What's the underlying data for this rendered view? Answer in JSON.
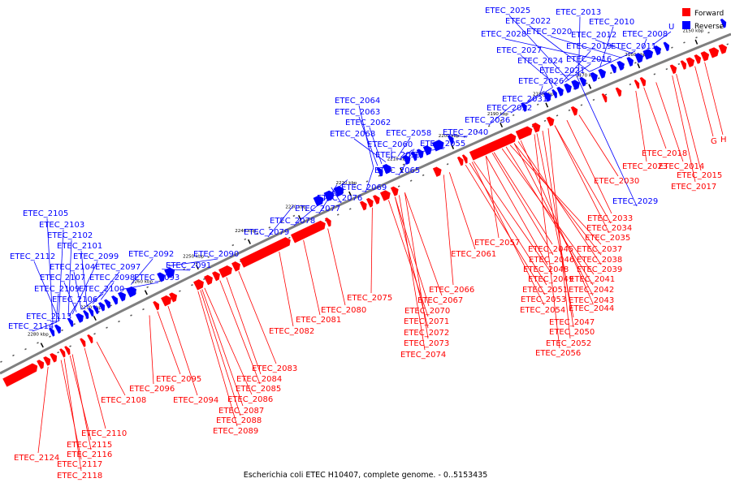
{
  "caption": "Escherichia coli ETEC H10407, complete genome. - 0..5153435",
  "legend": [
    {
      "label": "Forward",
      "color": "#ff0000"
    },
    {
      "label": "Reverse",
      "color": "#0000ff"
    }
  ],
  "colors": {
    "forward": "#ff0000",
    "reverse": "#0000ff",
    "backbone": "#7f7f7f",
    "tick": "#000000"
  },
  "scale_labels": [
    "2150 kbp",
    "2160 kbp",
    "2170 kbp",
    "2180 kbp",
    "2190 kbp",
    "2200 kbp",
    "2210 kbp",
    "2220 kbp",
    "2230 kbp",
    "2240 kbp",
    "2250 kbp",
    "2260 kbp",
    "2270 kbp",
    "2280 kbp"
  ],
  "reverse_labels": [
    "ETEC_2025",
    "ETEC_2013",
    "ETEC_2022",
    "ETEC_2010",
    "ETEC_2028",
    "ETEC_2020",
    "ETEC_2012",
    "ETEC_2008",
    "U",
    "ETEC_2027",
    "ETEC_2019",
    "ETEC_2011",
    "ETEC_2024",
    "ETEC_2016",
    "ETEC_2021",
    "ETEC_2026",
    "ETEC_2031",
    "ETEC_2032",
    "ETEC_2036",
    "ETEC_2064",
    "ETEC_2063",
    "ETEC_2062",
    "ETEC_2068",
    "ETEC_2058",
    "ETEC_2040",
    "ETEC_2060",
    "ETEC_2055",
    "ETEC_2059",
    "ETEC_2065",
    "ETEC_2069",
    "ETEC_2076",
    "ETEC_2077",
    "ETEC_2078",
    "ETEC_2079",
    "ETEC_2105",
    "ETEC_2103",
    "ETEC_2102",
    "ETEC_2101",
    "ETEC_2112",
    "ETEC_2099",
    "ETEC_2104",
    "ETEC_2097",
    "ETEC_2092",
    "ETEC_2090",
    "ETEC_2107",
    "ETEC_2098",
    "ETEC_2093",
    "ETEC_2091",
    "ETEC_2109",
    "ETEC_2100",
    "ETEC_2106",
    "ETEC_2113",
    "ETEC_2114",
    "ETEC_2029"
  ],
  "forward_labels": [
    "G",
    "H",
    "ETEC_2018",
    "ETEC_2014",
    "ETEC_2023",
    "ETEC_2015",
    "ETEC_2017",
    "ETEC_2030",
    "ETEC_2033",
    "ETEC_2034",
    "ETEC_2035",
    "ETEC_2057",
    "ETEC_2045",
    "ETEC_2037",
    "ETEC_2061",
    "ETEC_2046",
    "ETEC_2038",
    "ETEC_2048",
    "ETEC_2039",
    "ETEC_2041",
    "ETEC_2049",
    "ETEC_2066",
    "ETEC_2051",
    "ETEC_2042",
    "ETEC_2075",
    "ETEC_2067",
    "ETEC_2053",
    "ETEC_2043",
    "ETEC_2080",
    "ETEC_2070",
    "ETEC_2054",
    "ETEC_2044",
    "ETEC_2081",
    "ETEC_2071",
    "ETEC_2047",
    "ETEC_2082",
    "ETEC_2072",
    "ETEC_2050",
    "ETEC_2073",
    "ETEC_2052",
    "ETEC_2074",
    "ETEC_2056",
    "ETEC_2083",
    "ETEC_2095",
    "ETEC_2084",
    "ETEC_2096",
    "ETEC_2085",
    "ETEC_2108",
    "ETEC_2094",
    "ETEC_2086",
    "ETEC_2087",
    "ETEC_2088",
    "ETEC_2089",
    "ETEC_2110",
    "ETEC_2115",
    "ETEC_2116",
    "ETEC_2124",
    "ETEC_2117",
    "ETEC_2118"
  ]
}
